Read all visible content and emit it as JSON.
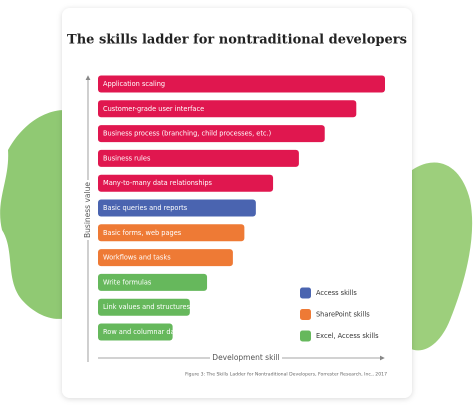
{
  "chart_data": {
    "type": "bar",
    "orientation": "horizontal",
    "title": "The skills ladder for nontraditional developers",
    "x_label": "Development skill",
    "y_label": "Business value",
    "categories": [
      "Application scaling",
      "Customer-grade user interface",
      "Business process (branching, child processes, etc.)",
      "Business rules",
      "Many-to-many data relationships",
      "Basic queries and reports",
      "Basic forms, web pages",
      "Workflows and tasks",
      "Write formulas",
      "Link values and structures",
      "Row and columnar data"
    ],
    "values": [
      100,
      90,
      79,
      70,
      61,
      55,
      51,
      47,
      38,
      32,
      26
    ],
    "colors": [
      "#e0174f",
      "#e0174f",
      "#e0174f",
      "#e0174f",
      "#e0174f",
      "#4a64b0",
      "#ee7a35",
      "#ee7a35",
      "#66b85c",
      "#66b85c",
      "#66b85c"
    ],
    "xlim": [
      0,
      100
    ],
    "legend": [
      {
        "label": "Access skills",
        "color": "#4a64b0"
      },
      {
        "label": "SharePoint skills",
        "color": "#ee7a35"
      },
      {
        "label": "Excel, Access skills",
        "color": "#66b85c"
      }
    ],
    "source": "Figure 3: The Skills Ladder for Nontraditional Developers, Forrester Research, Inc., 2017"
  }
}
